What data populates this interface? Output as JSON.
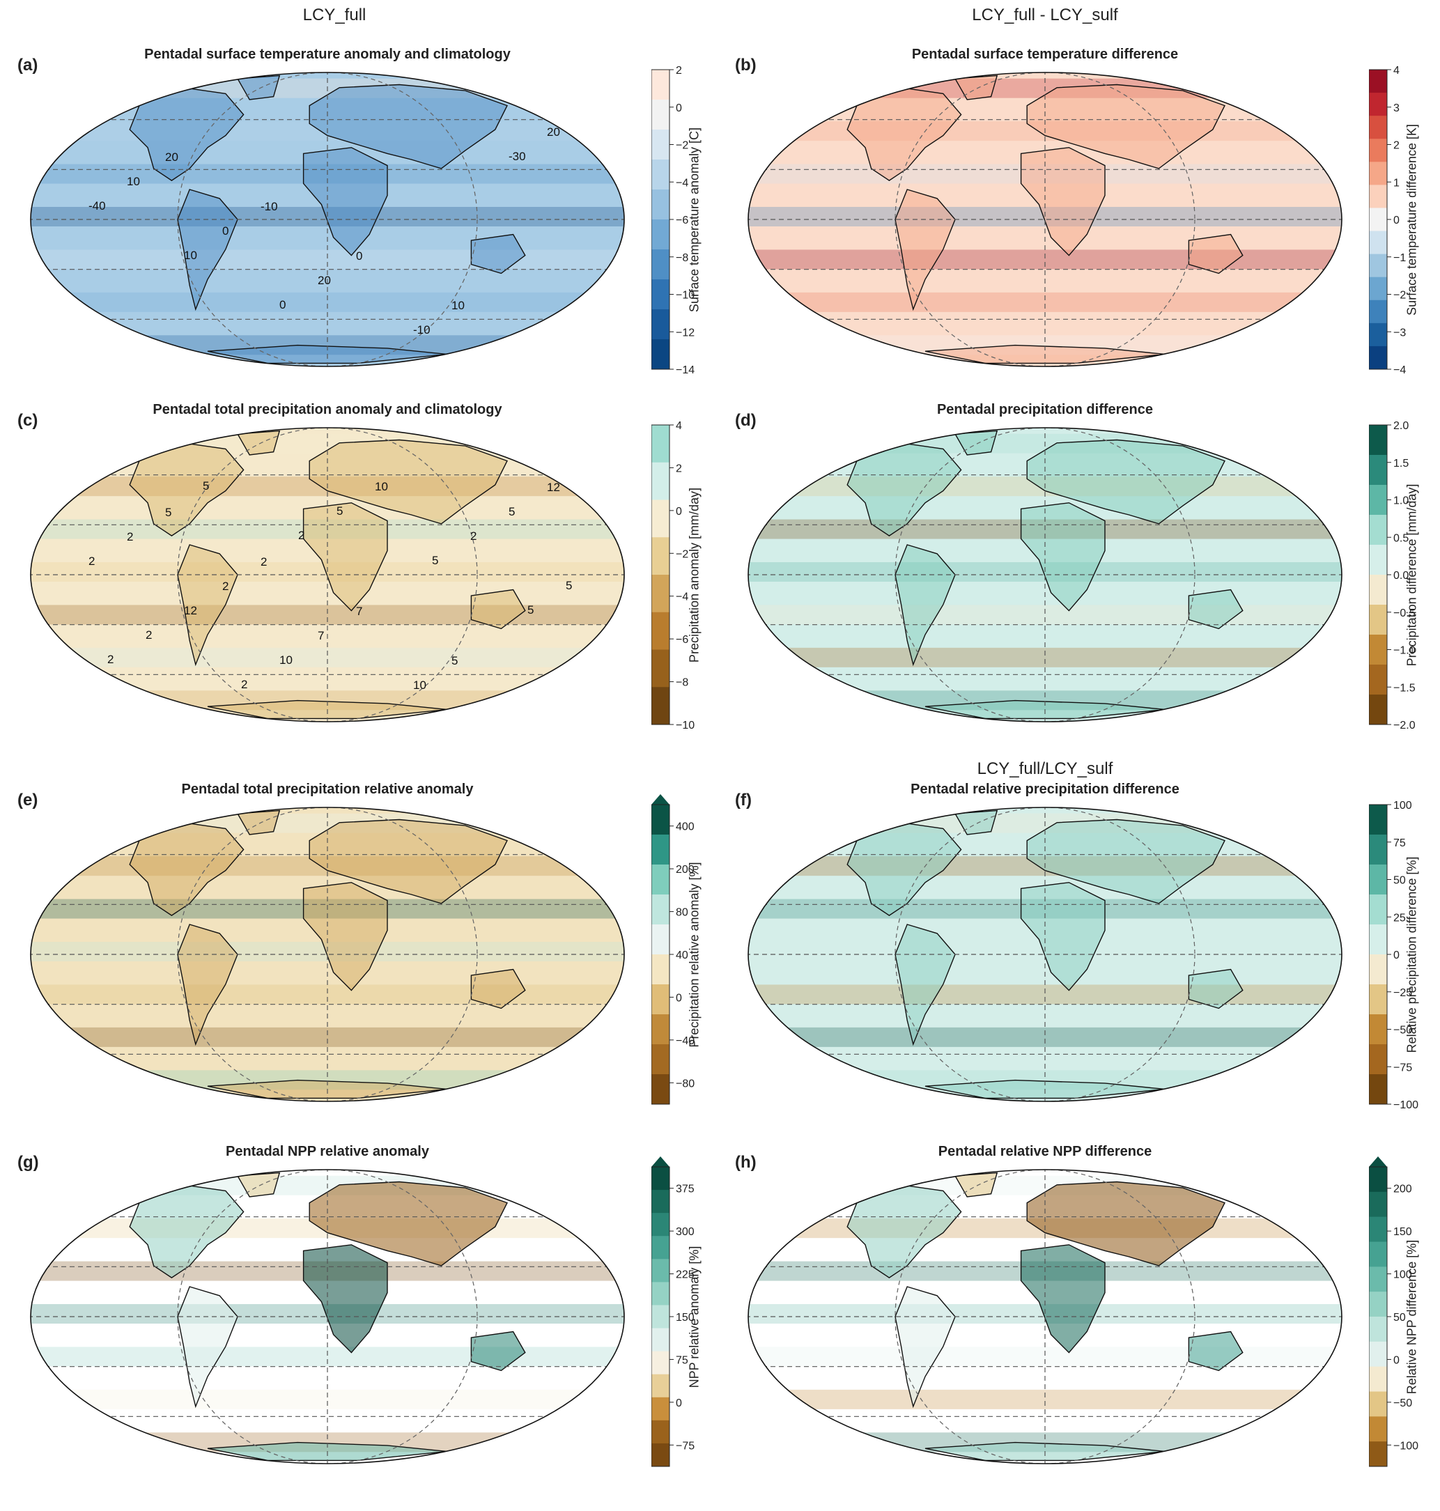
{
  "column_titles": [
    {
      "id": "left-top",
      "text": "LCY_full"
    },
    {
      "id": "right-top",
      "text": "LCY_full - LCY_sulf"
    },
    {
      "id": "right-mid",
      "text": "LCY_full/LCY_sulf"
    }
  ],
  "panels": [
    {
      "letter": "(a)",
      "title": "Pentadal surface temperature anomaly and climatology",
      "palette": "blue_anomaly",
      "fill": "#a9cde6",
      "accent": "#4a89c3",
      "colorbar": {
        "label": "Surface temperature anomaly [C]",
        "ticks": [
          "2",
          "0",
          "−2",
          "−4",
          "−6",
          "−8",
          "−10",
          "−12",
          "−14"
        ],
        "colors": [
          "#fde8dc",
          "#f2f2f2",
          "#d7e6f1",
          "#b8d5ea",
          "#97c1e0",
          "#72a9d4",
          "#4f8fc5",
          "#2f73b3",
          "#195a9b",
          "#0b4682"
        ],
        "extend": false
      },
      "contours": [
        "10",
        "20",
        "-10",
        "0",
        "10",
        "20",
        "10",
        "0",
        "20",
        "-10",
        "-30",
        "-40",
        "10",
        "0"
      ]
    },
    {
      "letter": "(b)",
      "title": "Pentadal surface temperature difference",
      "palette": "red_blue",
      "fill": "#fbdccb",
      "accent": "#f3a584",
      "colorbar": {
        "label": "Surface temperature difference [K]",
        "ticks": [
          "4",
          "3",
          "2",
          "1",
          "0",
          "−1",
          "−2",
          "−3",
          "−4"
        ],
        "colors": [
          "#9b1024",
          "#c0262f",
          "#d8503f",
          "#ea7b5d",
          "#f5a788",
          "#fbd1bc",
          "#f3f3f3",
          "#cfe2ef",
          "#9fc6e0",
          "#6ca6d0",
          "#3e82bb",
          "#1b5f9d",
          "#0b4080"
        ],
        "extend": false
      },
      "contours": []
    },
    {
      "letter": "(c)",
      "title": "Pentadal total precipitation anomaly and climatology",
      "palette": "brown_green",
      "fill": "#f5e9cc",
      "accent": "#d9b66b",
      "colorbar": {
        "label": "Precipitation anomaly [mm/day]",
        "ticks": [
          "4",
          "2",
          "0",
          "−2",
          "−4",
          "−6",
          "−8",
          "−10"
        ],
        "colors": [
          "#9fdcd0",
          "#d3eee9",
          "#f6ecd2",
          "#e8cf94",
          "#d2a55a",
          "#b97d2e",
          "#97611c",
          "#6f4512"
        ],
        "extend": false
      },
      "contours": [
        "5",
        "5",
        "2",
        "7",
        "5",
        "12",
        "2",
        "2",
        "7",
        "10",
        "5",
        "2",
        "12",
        "10",
        "10",
        "2",
        "5",
        "2",
        "2",
        "5",
        "5",
        "5",
        "2",
        "5",
        "2"
      ]
    },
    {
      "letter": "(d)",
      "title": "Pentadal precipitation difference",
      "palette": "brown_green",
      "fill": "#d3eee9",
      "accent": "#7cc9b8",
      "colorbar": {
        "label": "Precipitation difference [mm/day]",
        "ticks": [
          "2.0",
          "1.5",
          "1.0",
          "0.5",
          "0.0",
          "−0.5",
          "−1.0",
          "−1.5",
          "−2.0"
        ],
        "colors": [
          "#0d5a4b",
          "#2b8a7b",
          "#5db7a6",
          "#a4ddd1",
          "#d6efea",
          "#f4ead0",
          "#e3c686",
          "#c28935",
          "#a4671f",
          "#74470f"
        ],
        "extend": false
      },
      "contours": []
    },
    {
      "letter": "(e)",
      "title": "Pentadal total precipitation relative anomaly",
      "palette": "brown_green",
      "fill": "#f2e3bf",
      "accent": "#d1a65a",
      "colorbar": {
        "label": "Precipitation relative anomaly [%]",
        "ticks": [
          "400",
          "200",
          "80",
          "40",
          "0",
          "−40",
          "−80"
        ],
        "colors": [
          "#0b5446",
          "#2f9686",
          "#7fcdbc",
          "#bfe6de",
          "#eaf3f2",
          "#f4e6c3",
          "#e0bd78",
          "#c08a3a",
          "#a36a22",
          "#7a4a12"
        ],
        "extend": true
      },
      "contours": []
    },
    {
      "letter": "(f)",
      "title": "Pentadal relative precipitation difference",
      "palette": "brown_green",
      "fill": "#d5eee9",
      "accent": "#86cdbf",
      "colorbar": {
        "label": "Relative precipitation difference [%]",
        "ticks": [
          "100",
          "75",
          "50",
          "25",
          "0",
          "−25",
          "−50",
          "−75",
          "−100"
        ],
        "colors": [
          "#0d5a4b",
          "#2b8a7b",
          "#5db7a6",
          "#a4ddd1",
          "#d6efea",
          "#f4ead0",
          "#e3c686",
          "#c28935",
          "#a4671f",
          "#74470f"
        ],
        "extend": false
      },
      "contours": []
    },
    {
      "letter": "(g)",
      "title": "Pentadal NPP relative anomaly",
      "palette": "brown_green",
      "fill": "#ffffff",
      "accent": "#b77b2c",
      "colorbar": {
        "label": "NPP relative anomaly [%]",
        "ticks": [
          "375",
          "300",
          "225",
          "150",
          "75",
          "0",
          "−75"
        ],
        "colors": [
          "#0b4f42",
          "#1a6b5b",
          "#2b8676",
          "#46a292",
          "#6bbbab",
          "#95d2c4",
          "#bfe4dc",
          "#e1f0ed",
          "#f6efe0",
          "#e8cf98",
          "#c98f3c",
          "#9a621c",
          "#7a4a12"
        ],
        "extend": true
      },
      "contours": []
    },
    {
      "letter": "(h)",
      "title": "Pentadal relative NPP difference",
      "palette": "brown_green",
      "fill": "#ffffff",
      "accent": "#7cc9b8",
      "colorbar": {
        "label": "Relative NPP difference [%]",
        "ticks": [
          "200",
          "150",
          "100",
          "50",
          "0",
          "−50",
          "−100"
        ],
        "colors": [
          "#0b4f42",
          "#1a6b5b",
          "#2b8676",
          "#46a292",
          "#6bbbab",
          "#95d2c4",
          "#bfe4dc",
          "#e1f0ed",
          "#f4ead0",
          "#e3c686",
          "#c28935",
          "#8f5a17"
        ],
        "extend": true
      },
      "contours": []
    }
  ]
}
